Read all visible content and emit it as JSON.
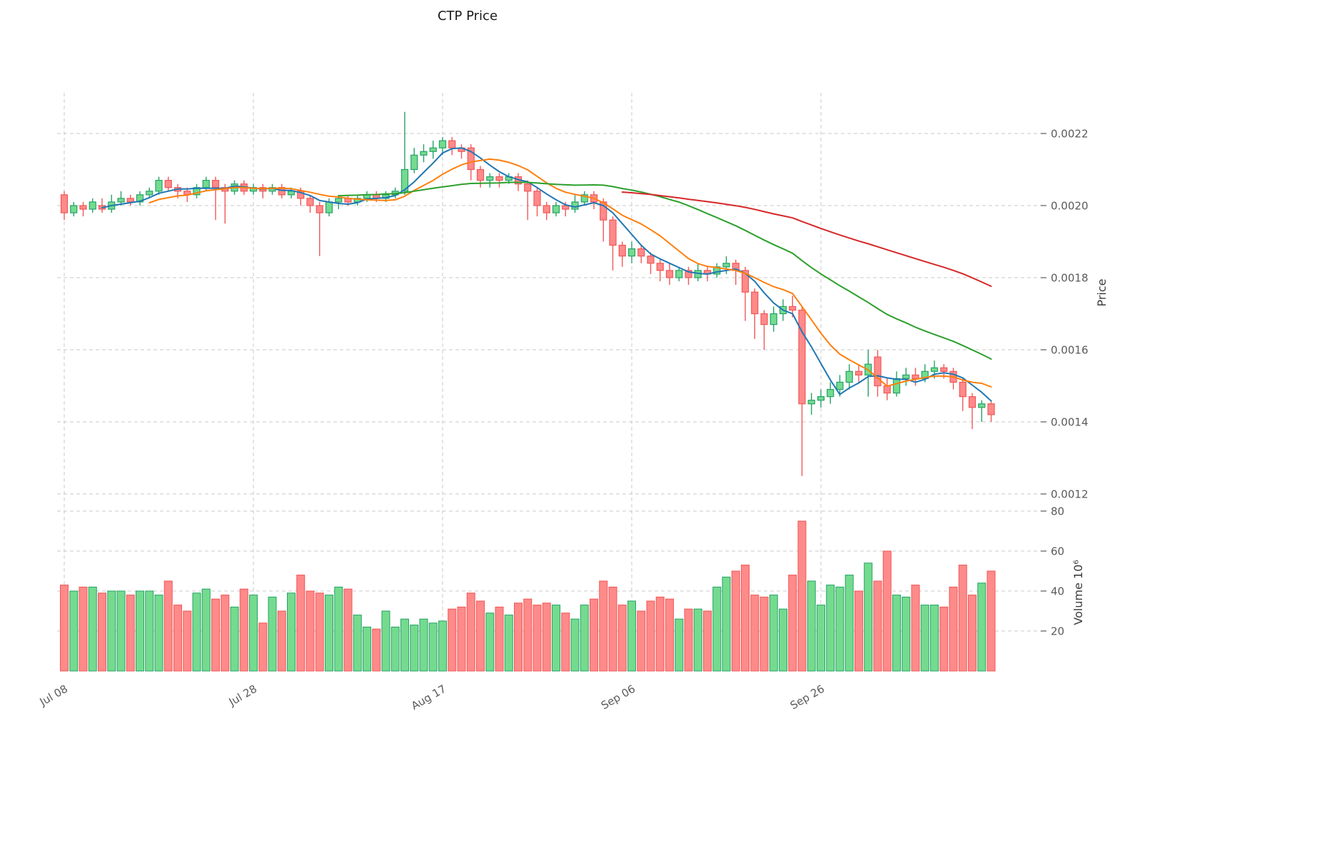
{
  "chart_data": {
    "type": "candlestick",
    "title": "CTP Price",
    "price_axis_label": "Price",
    "volume_axis_label": "Volume  10⁶",
    "price_ticks": [
      0.0022,
      0.002,
      0.0018,
      0.0016,
      0.0014,
      0.0012
    ],
    "volume_ticks_millions": [
      80,
      60,
      40,
      20
    ],
    "price_range": [
      0.0012,
      0.0022
    ],
    "volume_range_millions": [
      0,
      80
    ],
    "x_ticks": [
      {
        "index": 0,
        "label": "Jul 08"
      },
      {
        "index": 20,
        "label": "Jul 28"
      },
      {
        "index": 40,
        "label": "Aug 17"
      },
      {
        "index": 60,
        "label": "Sep 06"
      },
      {
        "index": 80,
        "label": "Sep 26"
      }
    ],
    "ma_overlays": [
      {
        "name": "MA5",
        "window": 5,
        "color": "#1f77b4"
      },
      {
        "name": "MA10",
        "window": 10,
        "color": "#ff7f0e"
      },
      {
        "name": "MA30",
        "window": 30,
        "color": "#2ca02c"
      },
      {
        "name": "MA60",
        "window": 60,
        "color": "#d62728"
      }
    ],
    "candles_format": [
      "open",
      "high",
      "low",
      "close",
      "volume_millions"
    ],
    "candles": [
      [
        0.00203,
        0.00204,
        0.00196,
        0.00198,
        43
      ],
      [
        0.00198,
        0.00201,
        0.00197,
        0.002,
        40
      ],
      [
        0.002,
        0.00201,
        0.00197,
        0.00199,
        42
      ],
      [
        0.00199,
        0.00202,
        0.00198,
        0.00201,
        42
      ],
      [
        0.002,
        0.00202,
        0.00198,
        0.00199,
        39
      ],
      [
        0.00199,
        0.00203,
        0.00198,
        0.00201,
        40
      ],
      [
        0.00201,
        0.00204,
        0.002,
        0.00202,
        40
      ],
      [
        0.00202,
        0.00203,
        0.002,
        0.00201,
        38
      ],
      [
        0.00201,
        0.00204,
        0.002,
        0.00203,
        40
      ],
      [
        0.00203,
        0.00205,
        0.00202,
        0.00204,
        40
      ],
      [
        0.00204,
        0.00208,
        0.00203,
        0.00207,
        38
      ],
      [
        0.00207,
        0.00208,
        0.00204,
        0.00205,
        45
      ],
      [
        0.00205,
        0.00206,
        0.00202,
        0.00204,
        33
      ],
      [
        0.00204,
        0.00205,
        0.00201,
        0.00203,
        30
      ],
      [
        0.00203,
        0.00206,
        0.00202,
        0.00205,
        39
      ],
      [
        0.00205,
        0.00208,
        0.00204,
        0.00207,
        41
      ],
      [
        0.00207,
        0.00208,
        0.00196,
        0.00205,
        36
      ],
      [
        0.00205,
        0.00206,
        0.00195,
        0.00204,
        38
      ],
      [
        0.00204,
        0.00207,
        0.00203,
        0.00206,
        32
      ],
      [
        0.00206,
        0.00207,
        0.00203,
        0.00204,
        41
      ],
      [
        0.00204,
        0.00206,
        0.00203,
        0.00205,
        38
      ],
      [
        0.00205,
        0.00206,
        0.00202,
        0.00204,
        24
      ],
      [
        0.00204,
        0.00206,
        0.00203,
        0.00205,
        37
      ],
      [
        0.00205,
        0.00206,
        0.00202,
        0.00203,
        30
      ],
      [
        0.00203,
        0.00205,
        0.00202,
        0.00204,
        39
      ],
      [
        0.00204,
        0.00205,
        0.002,
        0.00202,
        48
      ],
      [
        0.00202,
        0.00203,
        0.00198,
        0.002,
        40
      ],
      [
        0.002,
        0.00201,
        0.00186,
        0.00198,
        39
      ],
      [
        0.00198,
        0.00202,
        0.00197,
        0.00201,
        38
      ],
      [
        0.00201,
        0.00203,
        0.00199,
        0.00202,
        42
      ],
      [
        0.00202,
        0.00203,
        0.002,
        0.00201,
        41
      ],
      [
        0.00201,
        0.00203,
        0.002,
        0.00202,
        28
      ],
      [
        0.00202,
        0.00204,
        0.00201,
        0.00203,
        22
      ],
      [
        0.00203,
        0.00204,
        0.00201,
        0.00202,
        21
      ],
      [
        0.00202,
        0.00204,
        0.00201,
        0.00203,
        30
      ],
      [
        0.00203,
        0.00205,
        0.00202,
        0.00204,
        22
      ],
      [
        0.00204,
        0.00226,
        0.00203,
        0.0021,
        26
      ],
      [
        0.0021,
        0.00216,
        0.00209,
        0.00214,
        23
      ],
      [
        0.00214,
        0.00217,
        0.00212,
        0.00215,
        26
      ],
      [
        0.00215,
        0.00218,
        0.00213,
        0.00216,
        24
      ],
      [
        0.00216,
        0.00219,
        0.00214,
        0.00218,
        25
      ],
      [
        0.00218,
        0.00219,
        0.00214,
        0.00216,
        31
      ],
      [
        0.00216,
        0.00217,
        0.00213,
        0.00215,
        32
      ],
      [
        0.00216,
        0.00217,
        0.00207,
        0.0021,
        39
      ],
      [
        0.0021,
        0.00211,
        0.00205,
        0.00207,
        35
      ],
      [
        0.00207,
        0.00209,
        0.00205,
        0.00208,
        29
      ],
      [
        0.00208,
        0.00209,
        0.00205,
        0.00207,
        32
      ],
      [
        0.00207,
        0.00209,
        0.00206,
        0.00208,
        28
      ],
      [
        0.00208,
        0.00209,
        0.00204,
        0.00206,
        34
      ],
      [
        0.00206,
        0.00207,
        0.00196,
        0.00204,
        36
      ],
      [
        0.00204,
        0.00205,
        0.00197,
        0.002,
        33
      ],
      [
        0.002,
        0.00201,
        0.00196,
        0.00198,
        34
      ],
      [
        0.00198,
        0.00201,
        0.00197,
        0.002,
        33
      ],
      [
        0.002,
        0.00201,
        0.00197,
        0.00199,
        29
      ],
      [
        0.00199,
        0.00203,
        0.00198,
        0.00201,
        26
      ],
      [
        0.00201,
        0.00204,
        0.002,
        0.00203,
        33
      ],
      [
        0.00203,
        0.00204,
        0.00199,
        0.00201,
        36
      ],
      [
        0.00201,
        0.00202,
        0.0019,
        0.00196,
        45
      ],
      [
        0.00196,
        0.00197,
        0.00182,
        0.00189,
        42
      ],
      [
        0.00189,
        0.0019,
        0.00183,
        0.00186,
        33
      ],
      [
        0.00186,
        0.0019,
        0.00184,
        0.00188,
        35
      ],
      [
        0.00188,
        0.00189,
        0.00184,
        0.00186,
        30
      ],
      [
        0.00186,
        0.00187,
        0.00181,
        0.00184,
        35
      ],
      [
        0.00184,
        0.00185,
        0.00179,
        0.00182,
        37
      ],
      [
        0.00182,
        0.00184,
        0.00178,
        0.0018,
        36
      ],
      [
        0.0018,
        0.00183,
        0.00179,
        0.00182,
        26
      ],
      [
        0.00182,
        0.00183,
        0.00178,
        0.0018,
        31
      ],
      [
        0.0018,
        0.00184,
        0.00179,
        0.00182,
        31
      ],
      [
        0.00182,
        0.00183,
        0.00179,
        0.00181,
        30
      ],
      [
        0.00181,
        0.00184,
        0.0018,
        0.00183,
        42
      ],
      [
        0.00183,
        0.00186,
        0.00181,
        0.00184,
        47
      ],
      [
        0.00184,
        0.00185,
        0.00178,
        0.00182,
        50
      ],
      [
        0.00182,
        0.00183,
        0.00168,
        0.00176,
        53
      ],
      [
        0.00176,
        0.00177,
        0.00163,
        0.0017,
        38
      ],
      [
        0.0017,
        0.00171,
        0.0016,
        0.00167,
        37
      ],
      [
        0.00167,
        0.00172,
        0.00165,
        0.0017,
        38
      ],
      [
        0.0017,
        0.00174,
        0.00168,
        0.00172,
        31
      ],
      [
        0.00172,
        0.00175,
        0.00169,
        0.00171,
        48
      ],
      [
        0.00171,
        0.00172,
        0.00125,
        0.00145,
        75
      ],
      [
        0.00145,
        0.00148,
        0.00142,
        0.00146,
        45
      ],
      [
        0.00146,
        0.00149,
        0.00144,
        0.00147,
        33
      ],
      [
        0.00147,
        0.00151,
        0.00145,
        0.00149,
        43
      ],
      [
        0.00149,
        0.00153,
        0.00147,
        0.00151,
        42
      ],
      [
        0.00151,
        0.00156,
        0.00149,
        0.00154,
        48
      ],
      [
        0.00154,
        0.00156,
        0.00151,
        0.00153,
        40
      ],
      [
        0.00153,
        0.0016,
        0.00147,
        0.00156,
        54
      ],
      [
        0.00158,
        0.0016,
        0.00147,
        0.0015,
        45
      ],
      [
        0.0015,
        0.00152,
        0.00146,
        0.00148,
        60
      ],
      [
        0.00148,
        0.00154,
        0.00147,
        0.00152,
        38
      ],
      [
        0.00152,
        0.00155,
        0.0015,
        0.00153,
        37
      ],
      [
        0.00153,
        0.00155,
        0.0015,
        0.00152,
        43
      ],
      [
        0.00152,
        0.00156,
        0.00151,
        0.00154,
        33
      ],
      [
        0.00154,
        0.00157,
        0.00152,
        0.00155,
        33
      ],
      [
        0.00155,
        0.00156,
        0.00152,
        0.00154,
        32
      ],
      [
        0.00154,
        0.00155,
        0.00149,
        0.00151,
        42
      ],
      [
        0.00151,
        0.00152,
        0.00143,
        0.00147,
        53
      ],
      [
        0.00147,
        0.00148,
        0.00138,
        0.00144,
        38
      ],
      [
        0.00144,
        0.00146,
        0.0014,
        0.00145,
        44
      ],
      [
        0.00145,
        0.00146,
        0.0014,
        0.00142,
        50
      ]
    ]
  },
  "colors": {
    "up_fill": "#74db8e",
    "up_edge": "#26a269",
    "down_fill": "#ff8a8a",
    "down_edge": "#ef5857",
    "grid": "#c8c8c8",
    "tick_text": "#5a5a5a",
    "title_text": "#1a1a1a",
    "background": "#ffffff"
  }
}
